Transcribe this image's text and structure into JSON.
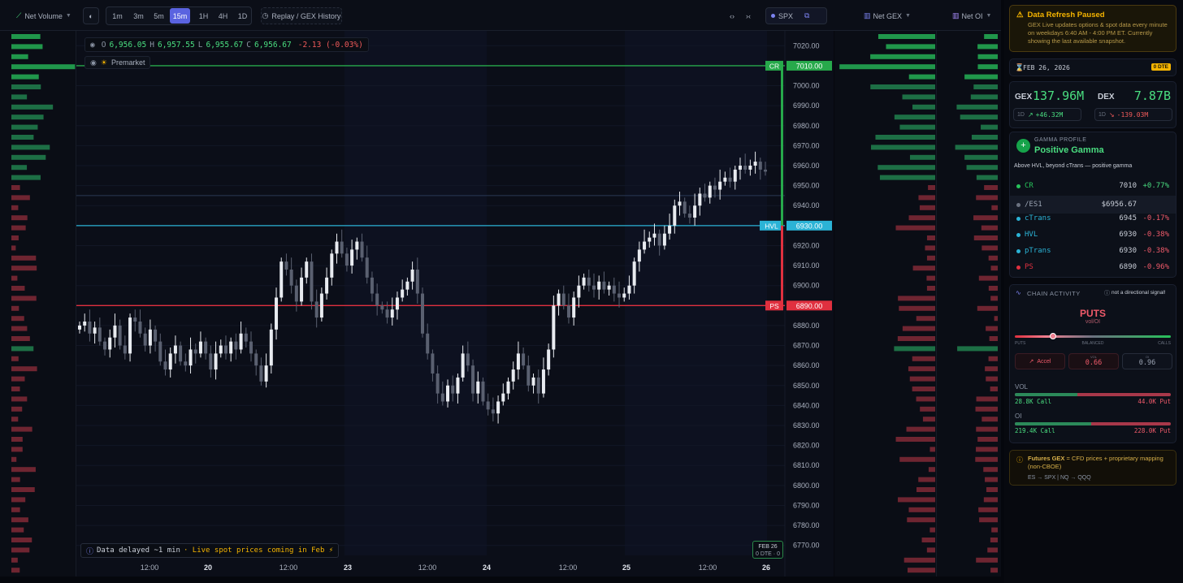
{
  "toolbar": {
    "net_volume": "Net Volume",
    "timeframes": [
      "1m",
      "3m",
      "5m",
      "15m",
      "1H",
      "4H",
      "1D"
    ],
    "active_timeframe": "15m",
    "replay": "Replay / GEX History",
    "symbol": "SPX",
    "net_gex": "Net GEX",
    "net_oi": "Net OI"
  },
  "ohlc": {
    "o_label": "O",
    "o": "6,956.05",
    "h_label": "H",
    "h": "6,957.55",
    "l_label": "L",
    "l": "6,955.67",
    "c_label": "C",
    "c": "6,956.67",
    "change": "-2.13 (-0.03%)"
  },
  "premarket": "Premarket",
  "delay_notice": {
    "text": "Data delayed ~1 min",
    "live": "· Live spot prices coming in Feb ⚡"
  },
  "date_badge": {
    "date": "FEB 26",
    "dte": "0 DTE · 0"
  },
  "price_axis": [
    "7020.00",
    "7010.00",
    "7000.00",
    "6990.00",
    "6980.00",
    "6970.00",
    "6960.00",
    "6950.00",
    "6940.00",
    "6930.00",
    "6920.00",
    "6910.00",
    "6900.00",
    "6890.00",
    "6880.00",
    "6870.00",
    "6860.00",
    "6850.00",
    "6840.00",
    "6830.00",
    "6820.00",
    "6810.00",
    "6800.00",
    "6790.00",
    "6780.00",
    "6770.00"
  ],
  "levels": [
    {
      "name": "CR",
      "price": "7010.00",
      "value": 7010,
      "color": "#27a94b"
    },
    {
      "name": "HVL",
      "price": "6930.00",
      "value": 6930,
      "color": "#2bb3d6"
    },
    {
      "name": "PS",
      "price": "6890.00",
      "value": 6890,
      "color": "#e0303f"
    }
  ],
  "time_axis": [
    "12:00",
    "20",
    "12:00",
    "23",
    "12:00",
    "24",
    "12:00",
    "25",
    "12:00",
    "26"
  ],
  "chart_data": {
    "type": "candlestick",
    "ylim": [
      6765,
      7025
    ],
    "series": [
      {
        "values": [
          6880,
          6882,
          6876,
          6879,
          6872,
          6868,
          6874,
          6880,
          6870,
          6866,
          6884,
          6882,
          6876,
          6870,
          6878,
          6872,
          6862,
          6858,
          6866,
          6870,
          6862,
          6860,
          6868,
          6866,
          6872,
          6866,
          6858,
          6866,
          6870,
          6866,
          6872,
          6868,
          6876,
          6872,
          6866,
          6860,
          6852,
          6860,
          6878,
          6894,
          6912,
          6908,
          6900,
          6892,
          6904,
          6912,
          6892,
          6884,
          6896,
          6904,
          6916,
          6922,
          6916,
          6910,
          6918,
          6922,
          6914,
          6904,
          6896,
          6890,
          6888,
          6884,
          6888,
          6894,
          6898,
          6902,
          6908,
          6896,
          6876,
          6866,
          6856,
          6846,
          6842,
          6850,
          6846,
          6854,
          6866,
          6860,
          6846,
          6852,
          6842,
          6838,
          6836,
          6842,
          6846,
          6852,
          6858,
          6866,
          6860,
          6850,
          6854,
          6846,
          6858,
          6868,
          6890,
          6896,
          6890,
          6884,
          6894,
          6900,
          6904,
          6900,
          6898,
          6902,
          6898,
          6900,
          6896,
          6894,
          6896,
          6900,
          6912,
          6918,
          6922,
          6924,
          6926,
          6920,
          6926,
          6930,
          6940,
          6942,
          6936,
          6934,
          6940,
          6946,
          6944,
          6950,
          6948,
          6952,
          6954,
          6952,
          6958,
          6960,
          6958,
          6960,
          6962,
          6958,
          6957
        ]
      }
    ]
  },
  "sidebar": {
    "refresh": {
      "title": "Data Refresh Paused",
      "body": "GEX Live updates options & spot data every minute on weekdays 6:40 AM - 4:00 PM ET. Currently showing the last available snapshot."
    },
    "date": {
      "label": "FEB 26, 2026",
      "dte": "0 DTE"
    },
    "gex": {
      "label": "GEX",
      "value": "137.96M",
      "period": "1D",
      "change": "+46.32M"
    },
    "dex": {
      "label": "DEX",
      "value": "7.87B",
      "period": "1D",
      "change": "-139.03M"
    },
    "gamma": {
      "label": "GAMMA PROFILE",
      "value": "Positive Gamma",
      "note": "Above HVL, beyond cTrans — positive gamma"
    },
    "levels": [
      {
        "name": "CR",
        "value": "7010",
        "change": "+0.77%",
        "color": "#27c25a"
      },
      {
        "name": "/ES1",
        "value": "$6956.67",
        "change": "",
        "color": "#6b7280"
      },
      {
        "name": "cTrans",
        "value": "6945",
        "change": "-0.17%",
        "color": "#2bb3d6"
      },
      {
        "name": "HVL",
        "value": "6930",
        "change": "-0.38%",
        "color": "#2bb3d6"
      },
      {
        "name": "pTrans",
        "value": "6930",
        "change": "-0.38%",
        "color": "#2bb3d6"
      },
      {
        "name": "PS",
        "value": "6890",
        "change": "-0.96%",
        "color": "#e0303f"
      }
    ],
    "chain": {
      "label": "CHAIN ACTIVITY",
      "note": "not a directional signal!",
      "bias": "PUTS",
      "sub": "vol/OI",
      "puts": "PUTS",
      "balanced": "BALANCED",
      "calls": "CALLS",
      "accel": "Accel",
      "vol_label": "VOL",
      "vol_value": "0.66",
      "oi_label": "OI",
      "oi_value": "0.96",
      "vol_title": "VOL",
      "vol_call": "28.8K Call",
      "vol_put": "44.0K Put",
      "oi_title": "OI",
      "oi_call": "219.4K Call",
      "oi_put": "228.0K Put",
      "put_fraction": 0.24
    },
    "futures": {
      "title": "Futures GEX",
      "body": "= CFD prices + proprietary mapping (non-CBOE)",
      "map": "ES → SPX | NQ → QQQ"
    }
  }
}
